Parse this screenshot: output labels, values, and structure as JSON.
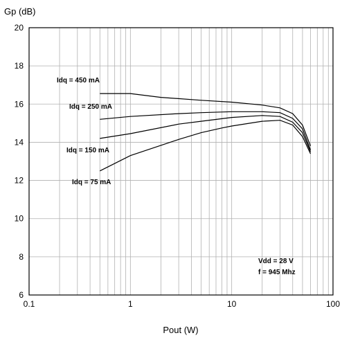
{
  "chart_data": {
    "type": "line",
    "title": "",
    "ylabel": "Gp (dB)",
    "xlabel": "Pout (W)",
    "xscale": "log",
    "xlim": [
      0.1,
      100
    ],
    "ylim": [
      6,
      20
    ],
    "x_ticks": [
      "0.1",
      "1",
      "10",
      "100"
    ],
    "y_ticks": [
      "6",
      "8",
      "10",
      "12",
      "14",
      "16",
      "18",
      "20"
    ],
    "grid": "on",
    "series": [
      {
        "name": "Idq = 450 mA",
        "x": [
          0.5,
          1,
          2,
          5,
          10,
          20,
          30,
          40,
          50,
          60
        ],
        "y": [
          16.55,
          16.55,
          16.35,
          16.2,
          16.1,
          15.95,
          15.8,
          15.5,
          14.9,
          13.8
        ]
      },
      {
        "name": "Idq = 250 mA",
        "x": [
          0.5,
          1,
          3,
          5,
          10,
          20,
          30,
          40,
          50,
          60
        ],
        "y": [
          15.2,
          15.35,
          15.5,
          15.55,
          15.6,
          15.6,
          15.55,
          15.25,
          14.7,
          13.6
        ]
      },
      {
        "name": "Idq = 150 mA",
        "x": [
          0.5,
          1,
          3,
          5,
          10,
          20,
          30,
          40,
          50,
          60
        ],
        "y": [
          14.2,
          14.45,
          14.95,
          15.1,
          15.3,
          15.4,
          15.35,
          15.05,
          14.5,
          13.5
        ]
      },
      {
        "name": "Idq = 75 mA",
        "x": [
          0.5,
          1,
          3,
          5,
          8,
          10,
          20,
          30,
          40,
          50,
          60
        ],
        "y": [
          12.5,
          13.3,
          14.15,
          14.5,
          14.75,
          14.85,
          15.1,
          15.15,
          14.9,
          14.3,
          13.4
        ]
      }
    ],
    "annotations": [
      "Vdd = 28 V",
      "f = 945 Mhz"
    ]
  }
}
